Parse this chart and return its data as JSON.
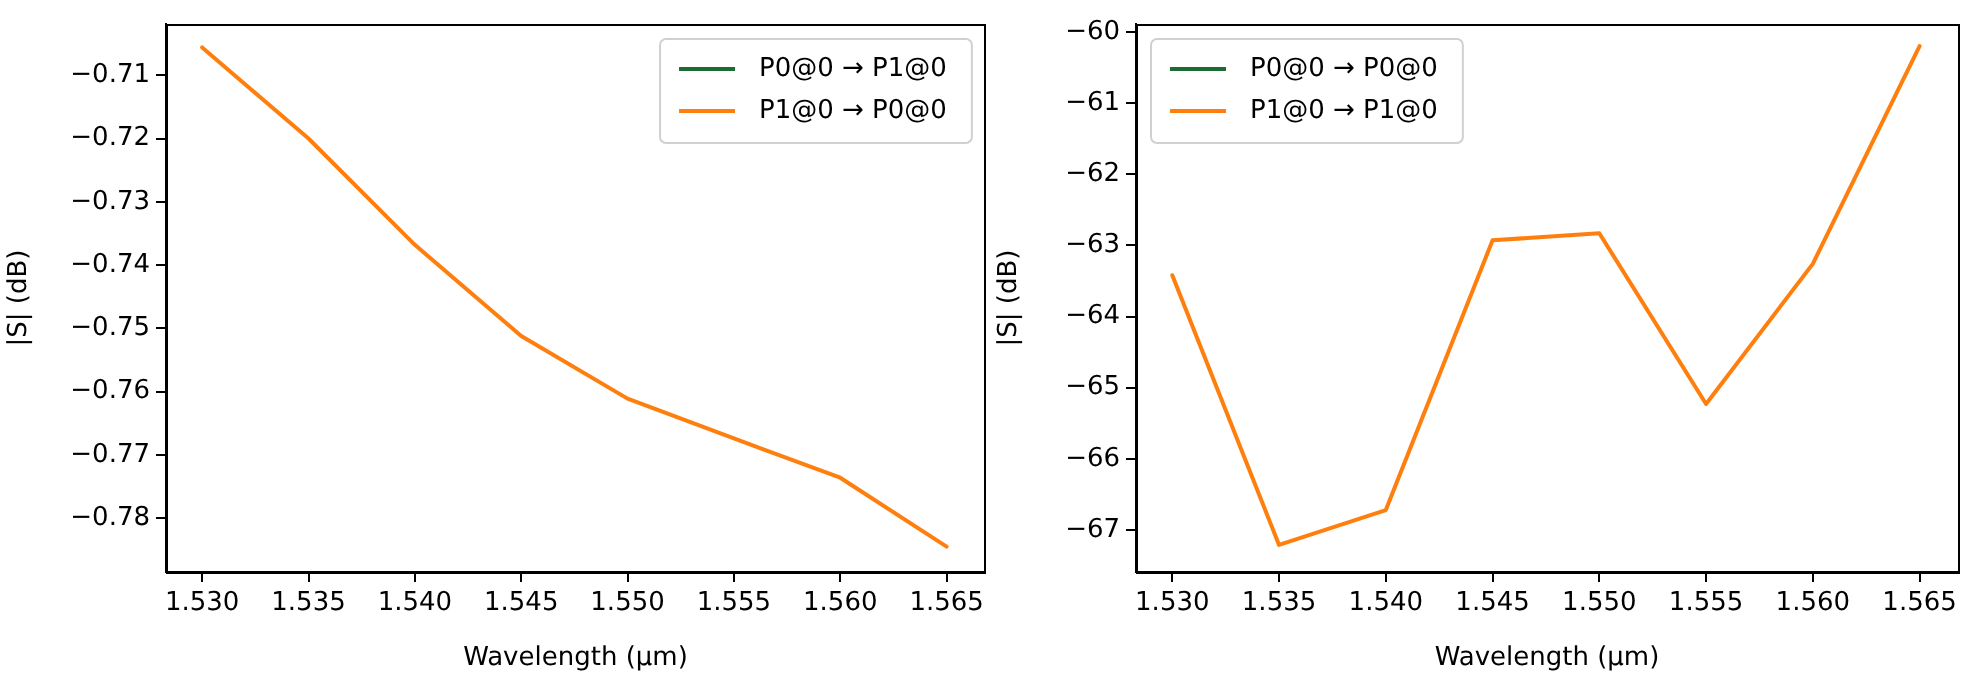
{
  "chart_data": [
    {
      "type": "line",
      "xlabel": "Wavelength (µm)",
      "ylabel": "|S| (dB)",
      "x": [
        1.53,
        1.535,
        1.54,
        1.545,
        1.55,
        1.555,
        1.56,
        1.565
      ],
      "series": [
        {
          "name": "P0@0 → P1@0",
          "color": "#1b6b35",
          "values": [
            null,
            null,
            null,
            null,
            null,
            null,
            null,
            null
          ]
        },
        {
          "name": "P1@0 → P0@0",
          "color": "#ff7f0e",
          "values": [
            -0.7056,
            -0.72,
            -0.7368,
            -0.7512,
            -0.7611,
            -0.7674,
            -0.7736,
            -0.7845
          ]
        }
      ],
      "xlim": [
        1.5283,
        1.5668
      ],
      "ylim": [
        -0.7885,
        -0.7019
      ],
      "xticks": [
        {
          "value": 1.53,
          "label": "1.530"
        },
        {
          "value": 1.535,
          "label": "1.535"
        },
        {
          "value": 1.54,
          "label": "1.540"
        },
        {
          "value": 1.545,
          "label": "1.545"
        },
        {
          "value": 1.55,
          "label": "1.550"
        },
        {
          "value": 1.555,
          "label": "1.555"
        },
        {
          "value": 1.56,
          "label": "1.560"
        },
        {
          "value": 1.565,
          "label": "1.565"
        }
      ],
      "yticks": [
        {
          "value": -0.71,
          "label": "−0.71"
        },
        {
          "value": -0.72,
          "label": "−0.72"
        },
        {
          "value": -0.73,
          "label": "−0.73"
        },
        {
          "value": -0.74,
          "label": "−0.74"
        },
        {
          "value": -0.75,
          "label": "−0.75"
        },
        {
          "value": -0.76,
          "label": "−0.76"
        },
        {
          "value": -0.77,
          "label": "−0.77"
        },
        {
          "value": -0.78,
          "label": "−0.78"
        }
      ],
      "legend": "top right",
      "grid": false,
      "marker": "none",
      "line_style": "solid"
    },
    {
      "type": "line",
      "xlabel": "Wavelength (µm)",
      "ylabel": "|S| (dB)",
      "x": [
        1.53,
        1.535,
        1.54,
        1.545,
        1.55,
        1.555,
        1.56,
        1.565
      ],
      "series": [
        {
          "name": "P0@0 → P0@0",
          "color": "#1b6b35",
          "values": [
            null,
            null,
            null,
            null,
            null,
            null,
            null,
            null
          ]
        },
        {
          "name": "P1@0 → P1@0",
          "color": "#ff7f0e",
          "values": [
            -63.42,
            -67.21,
            -66.72,
            -62.93,
            -62.83,
            -65.23,
            -63.26,
            -60.2
          ]
        }
      ],
      "xlim": [
        1.5283,
        1.5668
      ],
      "ylim": [
        -67.59,
        -59.89
      ],
      "xticks": [
        {
          "value": 1.53,
          "label": "1.530"
        },
        {
          "value": 1.535,
          "label": "1.535"
        },
        {
          "value": 1.54,
          "label": "1.540"
        },
        {
          "value": 1.545,
          "label": "1.545"
        },
        {
          "value": 1.55,
          "label": "1.550"
        },
        {
          "value": 1.555,
          "label": "1.555"
        },
        {
          "value": 1.56,
          "label": "1.560"
        },
        {
          "value": 1.565,
          "label": "1.565"
        }
      ],
      "yticks": [
        {
          "value": -60,
          "label": "−60"
        },
        {
          "value": -61,
          "label": "−61"
        },
        {
          "value": -62,
          "label": "−62"
        },
        {
          "value": -63,
          "label": "−63"
        },
        {
          "value": -64,
          "label": "−64"
        },
        {
          "value": -65,
          "label": "−65"
        },
        {
          "value": -66,
          "label": "−66"
        },
        {
          "value": -67,
          "label": "−67"
        }
      ],
      "legend": "top left",
      "grid": false,
      "marker": "none",
      "line_style": "solid"
    }
  ]
}
